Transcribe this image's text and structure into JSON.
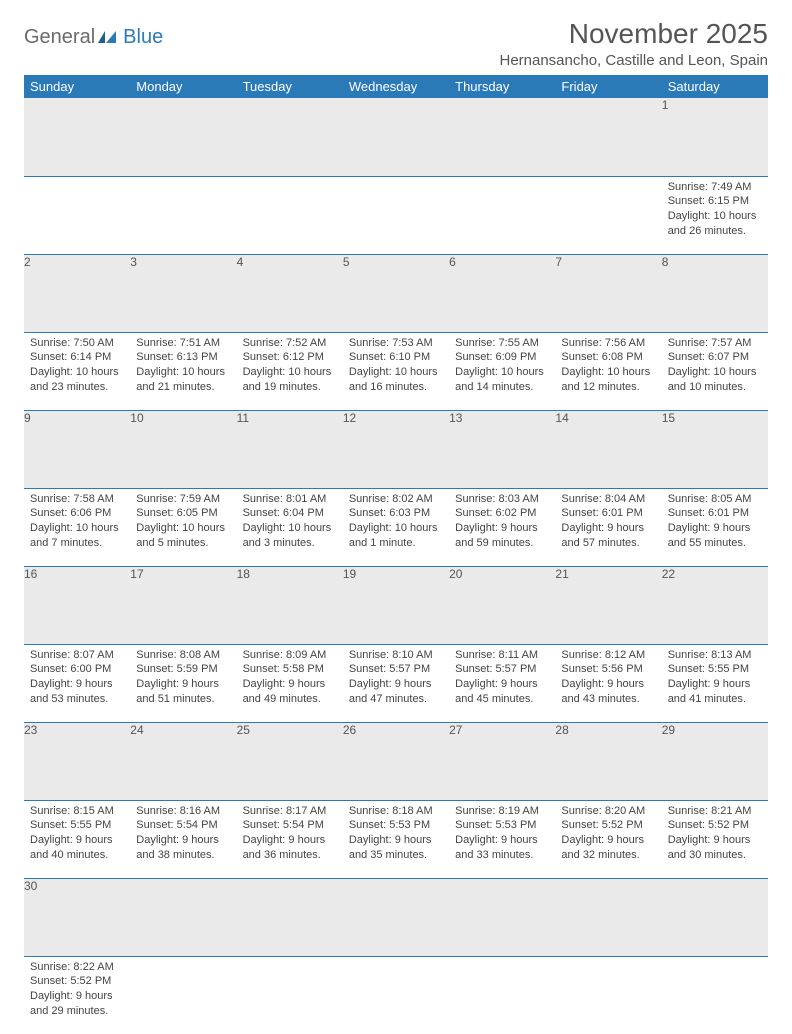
{
  "logo": {
    "general": "General",
    "blue": "Blue"
  },
  "title": "November 2025",
  "location": "Hernansancho, Castille and Leon, Spain",
  "colors": {
    "header_bg": "#2a7ab8",
    "daynum_bg": "#eaeaea",
    "border": "#2a7ab8"
  },
  "days_of_week": [
    "Sunday",
    "Monday",
    "Tuesday",
    "Wednesday",
    "Thursday",
    "Friday",
    "Saturday"
  ],
  "weeks": [
    [
      null,
      null,
      null,
      null,
      null,
      null,
      {
        "n": "1",
        "sunrise": "Sunrise: 7:49 AM",
        "sunset": "Sunset: 6:15 PM",
        "daylight": "Daylight: 10 hours and 26 minutes."
      }
    ],
    [
      {
        "n": "2",
        "sunrise": "Sunrise: 7:50 AM",
        "sunset": "Sunset: 6:14 PM",
        "daylight": "Daylight: 10 hours and 23 minutes."
      },
      {
        "n": "3",
        "sunrise": "Sunrise: 7:51 AM",
        "sunset": "Sunset: 6:13 PM",
        "daylight": "Daylight: 10 hours and 21 minutes."
      },
      {
        "n": "4",
        "sunrise": "Sunrise: 7:52 AM",
        "sunset": "Sunset: 6:12 PM",
        "daylight": "Daylight: 10 hours and 19 minutes."
      },
      {
        "n": "5",
        "sunrise": "Sunrise: 7:53 AM",
        "sunset": "Sunset: 6:10 PM",
        "daylight": "Daylight: 10 hours and 16 minutes."
      },
      {
        "n": "6",
        "sunrise": "Sunrise: 7:55 AM",
        "sunset": "Sunset: 6:09 PM",
        "daylight": "Daylight: 10 hours and 14 minutes."
      },
      {
        "n": "7",
        "sunrise": "Sunrise: 7:56 AM",
        "sunset": "Sunset: 6:08 PM",
        "daylight": "Daylight: 10 hours and 12 minutes."
      },
      {
        "n": "8",
        "sunrise": "Sunrise: 7:57 AM",
        "sunset": "Sunset: 6:07 PM",
        "daylight": "Daylight: 10 hours and 10 minutes."
      }
    ],
    [
      {
        "n": "9",
        "sunrise": "Sunrise: 7:58 AM",
        "sunset": "Sunset: 6:06 PM",
        "daylight": "Daylight: 10 hours and 7 minutes."
      },
      {
        "n": "10",
        "sunrise": "Sunrise: 7:59 AM",
        "sunset": "Sunset: 6:05 PM",
        "daylight": "Daylight: 10 hours and 5 minutes."
      },
      {
        "n": "11",
        "sunrise": "Sunrise: 8:01 AM",
        "sunset": "Sunset: 6:04 PM",
        "daylight": "Daylight: 10 hours and 3 minutes."
      },
      {
        "n": "12",
        "sunrise": "Sunrise: 8:02 AM",
        "sunset": "Sunset: 6:03 PM",
        "daylight": "Daylight: 10 hours and 1 minute."
      },
      {
        "n": "13",
        "sunrise": "Sunrise: 8:03 AM",
        "sunset": "Sunset: 6:02 PM",
        "daylight": "Daylight: 9 hours and 59 minutes."
      },
      {
        "n": "14",
        "sunrise": "Sunrise: 8:04 AM",
        "sunset": "Sunset: 6:01 PM",
        "daylight": "Daylight: 9 hours and 57 minutes."
      },
      {
        "n": "15",
        "sunrise": "Sunrise: 8:05 AM",
        "sunset": "Sunset: 6:01 PM",
        "daylight": "Daylight: 9 hours and 55 minutes."
      }
    ],
    [
      {
        "n": "16",
        "sunrise": "Sunrise: 8:07 AM",
        "sunset": "Sunset: 6:00 PM",
        "daylight": "Daylight: 9 hours and 53 minutes."
      },
      {
        "n": "17",
        "sunrise": "Sunrise: 8:08 AM",
        "sunset": "Sunset: 5:59 PM",
        "daylight": "Daylight: 9 hours and 51 minutes."
      },
      {
        "n": "18",
        "sunrise": "Sunrise: 8:09 AM",
        "sunset": "Sunset: 5:58 PM",
        "daylight": "Daylight: 9 hours and 49 minutes."
      },
      {
        "n": "19",
        "sunrise": "Sunrise: 8:10 AM",
        "sunset": "Sunset: 5:57 PM",
        "daylight": "Daylight: 9 hours and 47 minutes."
      },
      {
        "n": "20",
        "sunrise": "Sunrise: 8:11 AM",
        "sunset": "Sunset: 5:57 PM",
        "daylight": "Daylight: 9 hours and 45 minutes."
      },
      {
        "n": "21",
        "sunrise": "Sunrise: 8:12 AM",
        "sunset": "Sunset: 5:56 PM",
        "daylight": "Daylight: 9 hours and 43 minutes."
      },
      {
        "n": "22",
        "sunrise": "Sunrise: 8:13 AM",
        "sunset": "Sunset: 5:55 PM",
        "daylight": "Daylight: 9 hours and 41 minutes."
      }
    ],
    [
      {
        "n": "23",
        "sunrise": "Sunrise: 8:15 AM",
        "sunset": "Sunset: 5:55 PM",
        "daylight": "Daylight: 9 hours and 40 minutes."
      },
      {
        "n": "24",
        "sunrise": "Sunrise: 8:16 AM",
        "sunset": "Sunset: 5:54 PM",
        "daylight": "Daylight: 9 hours and 38 minutes."
      },
      {
        "n": "25",
        "sunrise": "Sunrise: 8:17 AM",
        "sunset": "Sunset: 5:54 PM",
        "daylight": "Daylight: 9 hours and 36 minutes."
      },
      {
        "n": "26",
        "sunrise": "Sunrise: 8:18 AM",
        "sunset": "Sunset: 5:53 PM",
        "daylight": "Daylight: 9 hours and 35 minutes."
      },
      {
        "n": "27",
        "sunrise": "Sunrise: 8:19 AM",
        "sunset": "Sunset: 5:53 PM",
        "daylight": "Daylight: 9 hours and 33 minutes."
      },
      {
        "n": "28",
        "sunrise": "Sunrise: 8:20 AM",
        "sunset": "Sunset: 5:52 PM",
        "daylight": "Daylight: 9 hours and 32 minutes."
      },
      {
        "n": "29",
        "sunrise": "Sunrise: 8:21 AM",
        "sunset": "Sunset: 5:52 PM",
        "daylight": "Daylight: 9 hours and 30 minutes."
      }
    ],
    [
      {
        "n": "30",
        "sunrise": "Sunrise: 8:22 AM",
        "sunset": "Sunset: 5:52 PM",
        "daylight": "Daylight: 9 hours and 29 minutes."
      },
      null,
      null,
      null,
      null,
      null,
      null
    ]
  ]
}
